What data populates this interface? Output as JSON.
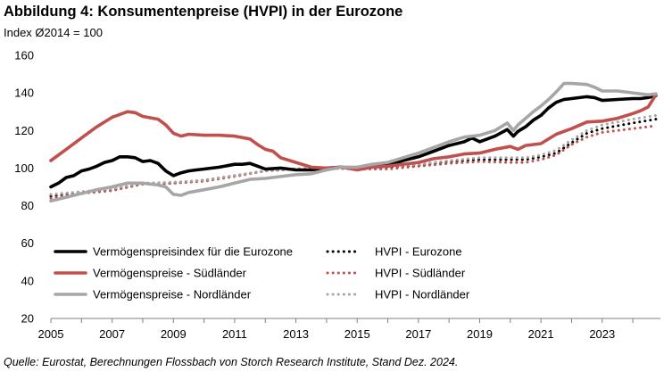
{
  "header": {
    "title": "Abbildung 4: Konsumentenpreise (HVPI) in der Eurozone",
    "subtitle": "Index Ø2014 = 100"
  },
  "footer": {
    "source": "Quelle: Eurostat, Berechnungen Flossbach von Storch Research Institute, Stand Dez. 2024."
  },
  "chart_data": {
    "type": "line",
    "title": "Abbildung 4: Konsumentenpreise (HVPI) in der Eurozone",
    "ylabel": "Index Ø2014 = 100",
    "xlabel": "",
    "xlim": [
      2005,
      2024.9
    ],
    "ylim": [
      20,
      160
    ],
    "yticks": [
      20,
      40,
      60,
      80,
      100,
      120,
      140,
      160
    ],
    "xticks": [
      2005,
      2007,
      2009,
      2011,
      2013,
      2015,
      2017,
      2019,
      2021,
      2023
    ],
    "grid": false,
    "legend_position": "lower-center",
    "series": [
      {
        "name": "Vermögenspreisindex für die Eurozone",
        "color": "#000000",
        "style": "solid",
        "x": [
          2005,
          2005.25,
          2005.5,
          2005.75,
          2006,
          2006.25,
          2006.5,
          2006.75,
          2007,
          2007.25,
          2007.5,
          2007.75,
          2008,
          2008.25,
          2008.5,
          2008.75,
          2009,
          2009.25,
          2009.5,
          2009.75,
          2010,
          2010.5,
          2011,
          2011.25,
          2011.5,
          2011.75,
          2012,
          2012.5,
          2013,
          2013.5,
          2014,
          2014.5,
          2015,
          2015.5,
          2016,
          2016.5,
          2017,
          2017.5,
          2018,
          2018.5,
          2018.75,
          2019,
          2019.5,
          2019.9,
          2020.1,
          2020.25,
          2020.5,
          2020.75,
          2021,
          2021.25,
          2021.5,
          2021.75,
          2022,
          2022.5,
          2022.75,
          2023,
          2023.5,
          2024,
          2024.25,
          2024.5,
          2024.75
        ],
        "y": [
          90,
          92,
          95,
          96,
          98.5,
          99.5,
          101,
          103,
          104,
          106,
          106,
          105.5,
          103.5,
          104,
          102.5,
          98.5,
          96,
          97.5,
          98.5,
          99,
          99.5,
          100.5,
          102,
          102,
          102.5,
          101,
          99.5,
          100,
          99,
          99,
          100,
          100.5,
          99.5,
          101.5,
          101.5,
          104,
          106,
          109,
          112,
          114,
          116,
          114,
          117,
          120.5,
          117,
          119.5,
          122,
          125.5,
          128,
          132,
          135,
          136.5,
          137,
          138,
          137.5,
          136,
          136.5,
          137,
          137,
          137.5,
          138.5
        ]
      },
      {
        "name": "Vermögenspreise - Südländer",
        "color": "#c0504d",
        "style": "solid",
        "x": [
          2005,
          2005.5,
          2006,
          2006.5,
          2007,
          2007.5,
          2007.75,
          2008,
          2008.5,
          2008.75,
          2009,
          2009.25,
          2009.5,
          2010,
          2010.5,
          2011,
          2011.5,
          2011.75,
          2012,
          2012.25,
          2012.5,
          2013,
          2013.5,
          2014,
          2014.5,
          2015,
          2015.5,
          2016,
          2016.5,
          2017,
          2017.5,
          2018,
          2018.5,
          2019,
          2019.5,
          2020,
          2020.25,
          2020.5,
          2021,
          2021.5,
          2022,
          2022.5,
          2023,
          2023.5,
          2024,
          2024.25,
          2024.5,
          2024.75
        ],
        "y": [
          104,
          110,
          116,
          122,
          127,
          130,
          129.5,
          127.5,
          126,
          123,
          118.5,
          117,
          118,
          117.5,
          117.5,
          117,
          115.5,
          112.5,
          110,
          109,
          105.5,
          103,
          100.5,
          100,
          100.5,
          99,
          100.5,
          101,
          102,
          103,
          105,
          106,
          107.5,
          108,
          110,
          111.5,
          110,
          112,
          113,
          118,
          121,
          124.5,
          125,
          126.5,
          129,
          130.5,
          132.5,
          139
        ]
      },
      {
        "name": "Vermögenspreise - Nordländer",
        "color": "#a6a6a6",
        "style": "solid",
        "x": [
          2005,
          2005.5,
          2006,
          2006.5,
          2007,
          2007.5,
          2008,
          2008.5,
          2008.75,
          2009,
          2009.25,
          2009.5,
          2010,
          2010.5,
          2011,
          2011.5,
          2012,
          2012.5,
          2013,
          2013.5,
          2014,
          2014.5,
          2015,
          2015.5,
          2016,
          2016.5,
          2017,
          2017.5,
          2018,
          2018.5,
          2019,
          2019.5,
          2019.9,
          2020.1,
          2020.25,
          2020.5,
          2020.75,
          2021,
          2021.25,
          2021.5,
          2021.75,
          2022,
          2022.5,
          2022.75,
          2023,
          2023.5,
          2024,
          2024.5,
          2024.75
        ],
        "y": [
          82.5,
          84.5,
          86.5,
          88.5,
          90,
          92,
          92,
          91,
          90,
          86,
          85.5,
          87,
          88.5,
          90,
          92,
          94,
          94.5,
          95.5,
          96.5,
          97,
          99,
          100.5,
          100.5,
          102,
          103,
          105.5,
          108,
          111,
          114,
          116.5,
          117.5,
          120,
          124,
          120,
          123,
          126.5,
          130,
          133,
          136.5,
          140.5,
          145,
          145,
          144.5,
          143,
          141,
          141,
          140,
          139,
          139.5
        ]
      },
      {
        "name": "HVPI - Eurozone",
        "color": "#000000",
        "style": "dotted",
        "x": [
          2005,
          2006,
          2007,
          2008,
          2009,
          2010,
          2011,
          2012,
          2013,
          2014,
          2015,
          2016,
          2017,
          2018,
          2019,
          2020,
          2020.5,
          2021,
          2021.5,
          2022,
          2022.5,
          2023,
          2023.5,
          2024,
          2024.75
        ],
        "y": [
          85,
          87,
          88.5,
          91.5,
          92,
          93.5,
          96,
          98.5,
          99.5,
          100,
          100,
          100.5,
          101.5,
          103.5,
          104.5,
          104.5,
          104.5,
          106,
          108,
          113.5,
          118.5,
          121,
          122.5,
          124,
          126
        ]
      },
      {
        "name": "HVPI - Südländer",
        "color": "#c0504d",
        "style": "dotted",
        "x": [
          2005,
          2006,
          2007,
          2008,
          2009,
          2010,
          2011,
          2012,
          2013,
          2014,
          2015,
          2016,
          2017,
          2018,
          2019,
          2020,
          2020.5,
          2021,
          2021.5,
          2022,
          2022.5,
          2023,
          2023.5,
          2024,
          2024.75
        ],
        "y": [
          84,
          86.5,
          88,
          91.5,
          92,
          93,
          95.5,
          98.5,
          99.5,
          100,
          99.5,
          99.5,
          101,
          102.5,
          103.5,
          103,
          103,
          104.5,
          107,
          112.5,
          116.5,
          119,
          120,
          121,
          122.5
        ]
      },
      {
        "name": "HVPI - Nordländer",
        "color": "#a6a6a6",
        "style": "dotted",
        "x": [
          2005,
          2006,
          2007,
          2008,
          2009,
          2010,
          2011,
          2012,
          2013,
          2014,
          2015,
          2016,
          2017,
          2018,
          2019,
          2020,
          2020.5,
          2021,
          2021.5,
          2022,
          2022.5,
          2023,
          2023.5,
          2024,
          2024.75
        ],
        "y": [
          86,
          87.5,
          89,
          92,
          92.5,
          93.5,
          96,
          98.5,
          99.5,
          100,
          100.5,
          101,
          102,
          104,
          105.5,
          105.5,
          105.5,
          107,
          109.5,
          115,
          120,
          123,
          124.5,
          126,
          128
        ]
      }
    ]
  }
}
